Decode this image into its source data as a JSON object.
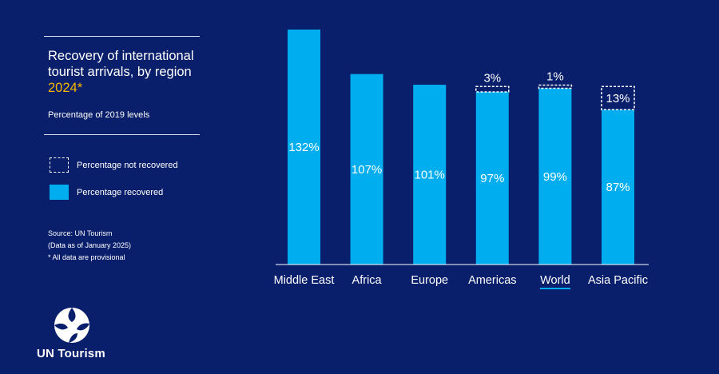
{
  "header": {
    "title_line1": "Recovery of international",
    "title_line2": "tourist arrivals, by region",
    "title_year": "2024*",
    "subtitle": "Percentage of 2019 levels"
  },
  "legend": {
    "not_recovered": "Percentage not recovered",
    "recovered": "Percentage recovered"
  },
  "footnotes": {
    "source": "Source: UN Tourism",
    "data_date": "(Data as of January 2025)",
    "provisional": "* All data are provisional"
  },
  "brand": {
    "name": "UN Tourism"
  },
  "colors": {
    "background": "#0a1f6b",
    "bar": "#00aeef",
    "accent_year": "#f5b800"
  },
  "chart_data": {
    "type": "bar",
    "title": "Recovery of international tourist arrivals, by region 2024*",
    "ylabel": "Percentage of 2019 levels",
    "xlabel": "",
    "ylim": [
      0,
      132
    ],
    "categories": [
      "Middle East",
      "Africa",
      "Europe",
      "Americas",
      "World",
      "Asia Pacific"
    ],
    "series": [
      {
        "name": "Percentage recovered",
        "values": [
          132,
          107,
          101,
          97,
          99,
          87
        ],
        "labels": [
          "132%",
          "107%",
          "101%",
          "97%",
          "99%",
          "87%"
        ]
      },
      {
        "name": "Percentage not recovered",
        "values": [
          0,
          0,
          0,
          3,
          1,
          13
        ],
        "labels": [
          "",
          "",
          "",
          "3%",
          "1%",
          "13%"
        ]
      }
    ],
    "highlight_category": "World"
  }
}
